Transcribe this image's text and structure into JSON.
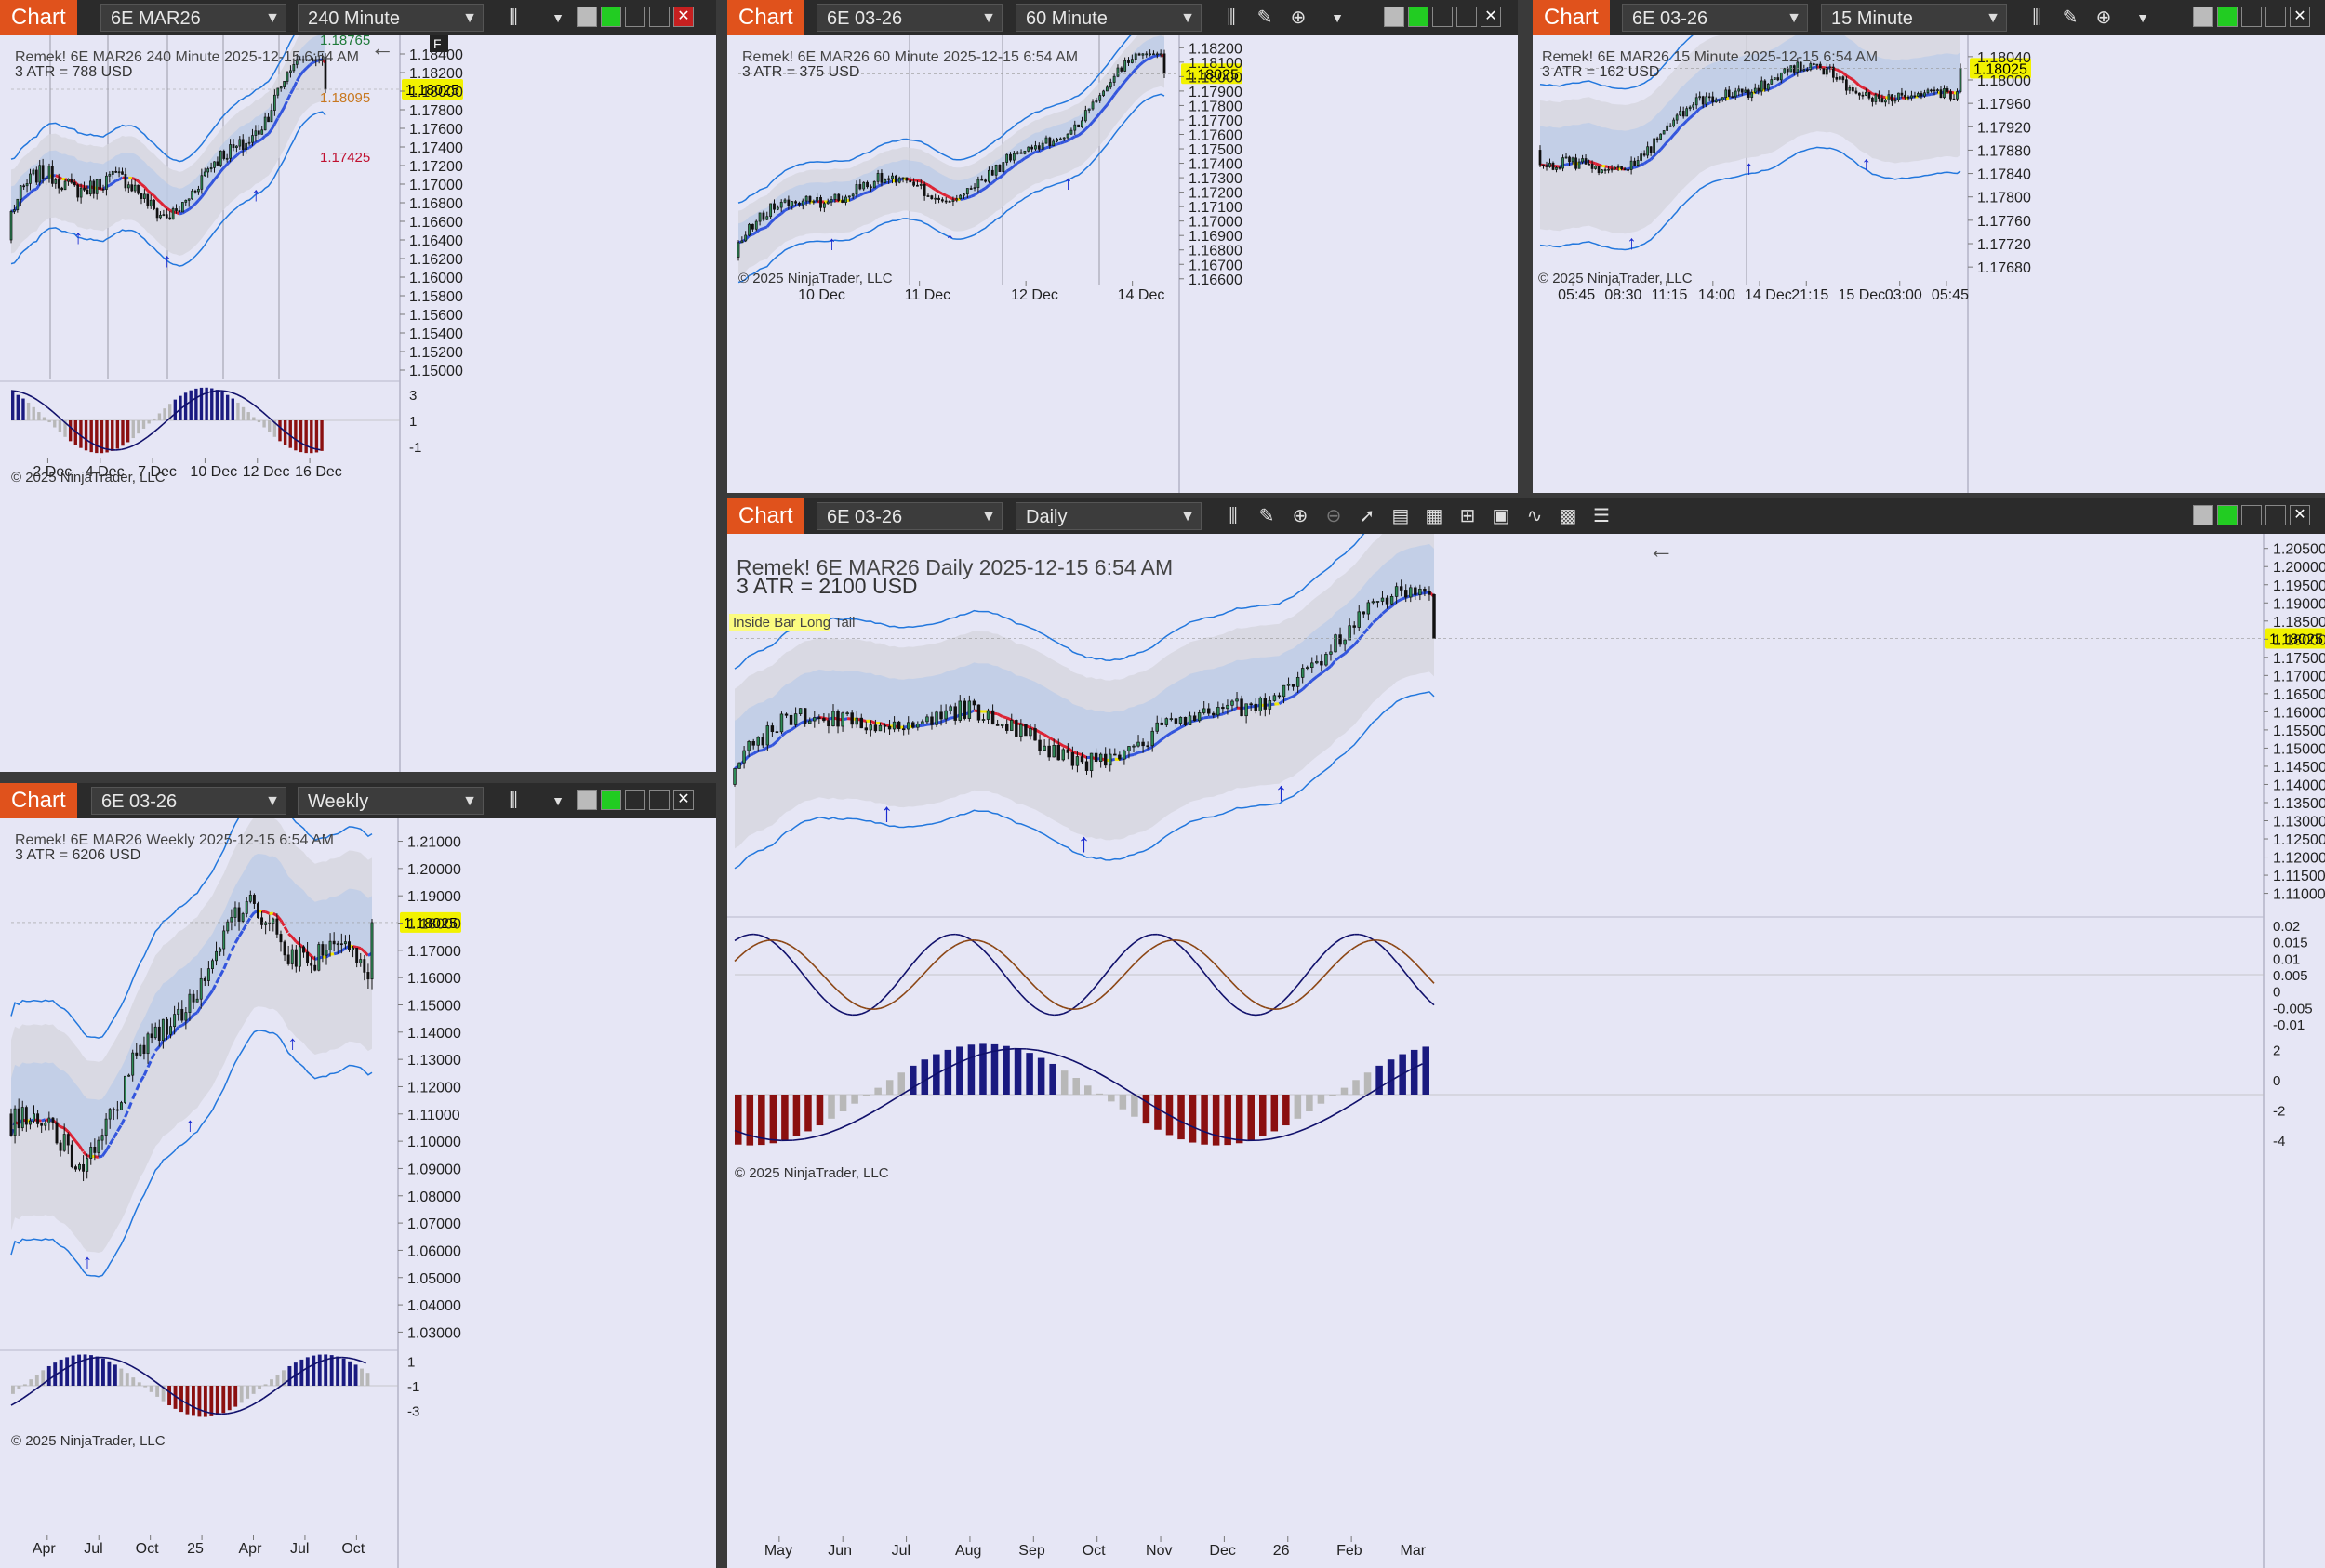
{
  "colors": {
    "up": "#2e8b57",
    "down": "#111111",
    "ma": "#3355dd",
    "band": "#2277dd",
    "curTag": "#f2f200",
    "bar_up": "#1a1a80",
    "bar_down": "#8b1010",
    "bar_neutral": "#b8b8b8"
  },
  "windows": [
    {
      "id": "w240",
      "tag": "Chart",
      "instrument": "6E MAR26",
      "interval": "240 Minute",
      "header": "Remek!  6E MAR26  240 Minute  2025-12-15 6:54 AM",
      "atr": "3 ATR = 788 USD",
      "copyright": "© 2025 NinjaTrader, LLC",
      "price": "1.18025",
      "extra_labels": [
        "1.18765",
        "1.18095",
        "1.17425"
      ],
      "f_button": "F",
      "chart_data": {
        "type": "candlestick",
        "ylim": [
          1.149,
          1.1856
        ],
        "y_ticks": [
          "1.18400",
          "1.18200",
          "1.18000",
          "1.17800",
          "1.17600",
          "1.17400",
          "1.17200",
          "1.17000",
          "1.16800",
          "1.16600",
          "1.16400",
          "1.16200",
          "1.16000",
          "1.15800",
          "1.15600",
          "1.15400",
          "1.15200",
          "1.15000"
        ],
        "x_ticks": [
          "2 Dec",
          "4 Dec",
          "7 Dec",
          "10 Dec",
          "12 Dec",
          "16 Dec"
        ],
        "osc_ticks": [
          "3",
          "1",
          "-1"
        ],
        "start": 1.164,
        "end": 1.1802
      }
    },
    {
      "id": "w60",
      "tag": "Chart",
      "instrument": "6E 03-26",
      "interval": "60 Minute",
      "header": "Remek!  6E MAR26  60 Minute  2025-12-15 6:54 AM",
      "atr": "3 ATR = 375 USD",
      "copyright": "© 2025 NinjaTrader, LLC",
      "price": "1.18025",
      "chart_data": {
        "type": "candlestick",
        "ylim": [
          1.1656,
          1.1826
        ],
        "y_ticks": [
          "1.18200",
          "1.18100",
          "1.18000",
          "1.17900",
          "1.17800",
          "1.17700",
          "1.17600",
          "1.17500",
          "1.17400",
          "1.17300",
          "1.17200",
          "1.17100",
          "1.17000",
          "1.16900",
          "1.16800",
          "1.16700",
          "1.16600"
        ],
        "x_ticks": [
          "10 Dec",
          "11 Dec",
          "12 Dec",
          "14 Dec"
        ],
        "start": 1.1675,
        "end": 1.1802
      }
    },
    {
      "id": "w15",
      "tag": "Chart",
      "instrument": "6E 03-26",
      "interval": "15 Minute",
      "header": "Remek!  6E MAR26  15 Minute  2025-12-15 6:54 AM",
      "atr": "3 ATR = 162 USD",
      "copyright": "© 2025 NinjaTrader, LLC",
      "price": "1.18025",
      "chart_data": {
        "type": "candlestick",
        "ylim": [
          1.1765,
          1.1807
        ],
        "y_ticks": [
          "1.18040",
          "1.18000",
          "1.17960",
          "1.17920",
          "1.17880",
          "1.17840",
          "1.17800",
          "1.17760",
          "1.17720",
          "1.17680"
        ],
        "x_ticks": [
          "05:45",
          "08:30",
          "11:15",
          "14:00",
          "14 Dec",
          "21:15",
          "15 Dec",
          "03:00",
          "05:45"
        ],
        "start": 1.1788,
        "end": 1.1802
      }
    },
    {
      "id": "wW",
      "tag": "Chart",
      "instrument": "6E 03-26",
      "interval": "Weekly",
      "header": "Remek!  6E MAR26  Weekly  2025-12-15 6:54 AM",
      "atr": "3 ATR = 6206 USD",
      "copyright": "© 2025 NinjaTrader, LLC",
      "price": "1.18025",
      "chart_data": {
        "type": "candlestick",
        "ylim": [
          1.024,
          1.217
        ],
        "y_ticks": [
          "1.21000",
          "1.20000",
          "1.19000",
          "1.18000",
          "1.17000",
          "1.16000",
          "1.15000",
          "1.14000",
          "1.13000",
          "1.12000",
          "1.11000",
          "1.10000",
          "1.09000",
          "1.08000",
          "1.07000",
          "1.06000",
          "1.05000",
          "1.04000",
          "1.03000"
        ],
        "x_ticks": [
          "Apr",
          "Jul",
          "Oct",
          "25",
          "Apr",
          "Jul",
          "Oct"
        ],
        "osc_ticks": [
          "1",
          "-1",
          "-3"
        ],
        "start": 1.11,
        "end": 1.1802
      }
    },
    {
      "id": "wD",
      "tag": "Chart",
      "instrument": "6E 03-26",
      "interval": "Daily",
      "header": "Remek!  6E MAR26  Daily  2025-12-15 6:54 AM",
      "atr": "3 ATR = 2100 USD",
      "copyright": "© 2025 NinjaTrader, LLC",
      "price": "1.18025",
      "pattern": "Inside Bar Long Tail",
      "chart_data": {
        "type": "candlestick",
        "ylim": [
          1.104,
          1.208
        ],
        "y_ticks": [
          "1.20500",
          "1.20000",
          "1.19500",
          "1.19000",
          "1.18500",
          "1.18000",
          "1.17500",
          "1.17000",
          "1.16500",
          "1.16000",
          "1.15500",
          "1.15000",
          "1.14500",
          "1.14000",
          "1.13500",
          "1.13000",
          "1.12500",
          "1.12000",
          "1.11500",
          "1.11000"
        ],
        "x_ticks": [
          "May",
          "Jun",
          "Jul",
          "Aug",
          "Sep",
          "Oct",
          "Nov",
          "Dec",
          "26",
          "Feb",
          "Mar"
        ],
        "macd_ticks": [
          "0.02",
          "0.015",
          "0.01",
          "0.005",
          "0",
          "-0.005",
          "-0.01"
        ],
        "osc_ticks": [
          "2",
          "0",
          "-2",
          "-4"
        ],
        "start": 1.14,
        "end": 1.1802
      }
    }
  ]
}
